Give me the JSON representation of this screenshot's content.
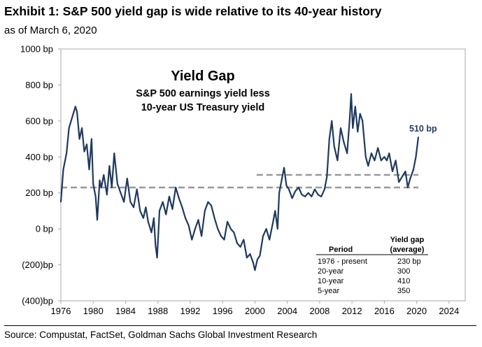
{
  "title": "Exhibit 1: S&P 500 yield gap is wide relative to its 40-year history",
  "subtitle": "as of March 6, 2020",
  "source": "Source: Compustat, FactSet, Goldman Sachs Global Investment Research",
  "colors": {
    "series": "#1f3a5f",
    "averages": "#999999",
    "frame": "#aaaaaa"
  },
  "chart_data": {
    "type": "line",
    "title": "Yield Gap",
    "subtitle_lines": [
      "S&P 500 earnings yield less",
      "10-year US Treasury yield"
    ],
    "xlabel": "",
    "ylabel": "",
    "xlim": [
      1976,
      2026
    ],
    "ylim": [
      -400,
      1000
    ],
    "x_ticks": [
      "1976",
      "1980",
      "1984",
      "1988",
      "1992",
      "1996",
      "2000",
      "2004",
      "2008",
      "2012",
      "2016",
      "2020",
      "2024"
    ],
    "x_tick_values": [
      1976,
      1980,
      1984,
      1988,
      1992,
      1996,
      2000,
      2004,
      2008,
      2012,
      2016,
      2020,
      2024
    ],
    "y_ticks": [
      "(400)bp",
      "(200)bp",
      "0 bp",
      "200 bp",
      "400 bp",
      "600 bp",
      "800 bp",
      "1000 bp"
    ],
    "y_tick_values": [
      -400,
      -200,
      0,
      200,
      400,
      600,
      800,
      1000
    ],
    "grid": false,
    "series": [
      {
        "x": [
          1976.0,
          1976.3,
          1976.7,
          1977.0,
          1977.4,
          1977.8,
          1978.0,
          1978.3,
          1978.6,
          1978.9,
          1979.2,
          1979.5,
          1979.8,
          1980.0,
          1980.3,
          1980.5,
          1980.8,
          1981.0,
          1981.3,
          1981.7,
          1982.0,
          1982.3,
          1982.6,
          1983.0,
          1983.4,
          1983.8,
          1984.2,
          1984.6,
          1985.0,
          1985.4,
          1985.8,
          1986.2,
          1986.5,
          1986.8,
          1987.2,
          1987.5,
          1987.7,
          1987.9,
          1988.2,
          1988.6,
          1989.0,
          1989.4,
          1989.8,
          1990.2,
          1990.6,
          1991.0,
          1991.4,
          1991.8,
          1992.2,
          1992.6,
          1993.0,
          1993.4,
          1993.8,
          1994.2,
          1994.6,
          1995.0,
          1995.4,
          1995.8,
          1996.2,
          1996.6,
          1997.0,
          1997.4,
          1997.8,
          1998.2,
          1998.6,
          1999.0,
          1999.4,
          1999.8,
          2000.0,
          2000.3,
          2000.6,
          2001.0,
          2001.4,
          2001.8,
          2002.2,
          2002.5,
          2002.8,
          2003.0,
          2003.3,
          2003.6,
          2003.9,
          2004.2,
          2004.6,
          2005.0,
          2005.4,
          2005.8,
          2006.2,
          2006.6,
          2007.0,
          2007.4,
          2007.8,
          2008.2,
          2008.6,
          2008.9,
          2009.2,
          2009.5,
          2009.8,
          2010.2,
          2010.6,
          2011.0,
          2011.4,
          2011.7,
          2011.9,
          2012.1,
          2012.4,
          2012.7,
          2013.0,
          2013.3,
          2013.7,
          2014.0,
          2014.4,
          2014.8,
          2015.2,
          2015.6,
          2016.0,
          2016.3,
          2016.6,
          2017.0,
          2017.4,
          2017.8,
          2018.2,
          2018.6,
          2018.9,
          2019.2,
          2019.6,
          2019.9,
          2020.2
        ],
        "y": [
          150,
          330,
          420,
          560,
          620,
          680,
          650,
          500,
          560,
          430,
          470,
          330,
          500,
          250,
          180,
          50,
          270,
          230,
          300,
          190,
          350,
          230,
          420,
          250,
          200,
          150,
          280,
          150,
          120,
          220,
          100,
          60,
          120,
          40,
          -20,
          60,
          -90,
          -160,
          100,
          150,
          80,
          180,
          110,
          230,
          170,
          120,
          60,
          20,
          -60,
          0,
          50,
          -40,
          100,
          150,
          130,
          60,
          0,
          -40,
          -60,
          40,
          0,
          -20,
          -80,
          -100,
          -60,
          -160,
          -140,
          -190,
          -230,
          -170,
          -150,
          -40,
          0,
          -60,
          30,
          100,
          0,
          200,
          270,
          340,
          240,
          220,
          170,
          210,
          230,
          190,
          180,
          200,
          180,
          220,
          190,
          180,
          220,
          290,
          500,
          600,
          460,
          380,
          560,
          480,
          420,
          600,
          750,
          560,
          680,
          540,
          640,
          600,
          400,
          350,
          420,
          380,
          450,
          380,
          400,
          380,
          420,
          320,
          380,
          260,
          290,
          320,
          230,
          280,
          330,
          400,
          510
        ]
      }
    ],
    "reference_lines": [
      {
        "label": "1976 - present",
        "value": 230,
        "x_start": 1976,
        "x_end": 2020.2
      },
      {
        "label": "20-year",
        "value": 300,
        "x_start": 2000.2,
        "x_end": 2020.2
      }
    ],
    "annotations": [
      {
        "text": "510 bp",
        "x": 2020.2,
        "y": 510
      }
    ],
    "table": {
      "headers": [
        "Period",
        "Yield gap",
        "(average)"
      ],
      "rows": [
        [
          "1976 - present",
          "230 bp"
        ],
        [
          "20-year",
          "300"
        ],
        [
          "10-year",
          "410"
        ],
        [
          "5-year",
          "350"
        ]
      ]
    }
  }
}
